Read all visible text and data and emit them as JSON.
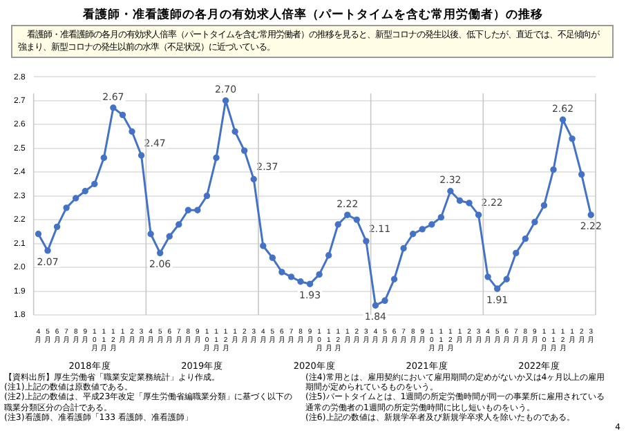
{
  "chart_data": {
    "type": "line",
    "title": "看護師・准看護師の各月の有効求人倍率（パートタイムを含む常用労働者）の推移",
    "subtitle": "看護師・准看護師の各月の有効求人倍率（パートタイムを含む常用労働者）の推移を見ると、新型コロナの発生以後、低下したが、直近では、不足傾向が強まり、新型コロナの発生以前の水準（不足状況）に近づいている。",
    "categories": [
      "4月",
      "5月",
      "6月",
      "7月",
      "8月",
      "9月",
      "10月",
      "11月",
      "12月",
      "1月",
      "2月",
      "3月",
      "4月",
      "5月",
      "6月",
      "7月",
      "8月",
      "9月",
      "10月",
      "11月",
      "12月",
      "1月",
      "2月",
      "3月",
      "4月",
      "5月",
      "6月",
      "7月",
      "8月",
      "9月",
      "10月",
      "11月",
      "12月",
      "1月",
      "2月",
      "3月",
      "4月",
      "5月",
      "6月",
      "7月",
      "8月",
      "9月",
      "10月",
      "11月",
      "12月",
      "1月",
      "2月",
      "3月",
      "4月",
      "5月",
      "6月",
      "7月",
      "8月",
      "9月",
      "10月",
      "11月",
      "12月",
      "1月",
      "2月",
      "3月"
    ],
    "series": [
      {
        "color": "#4472c4",
        "values": [
          2.14,
          2.07,
          2.17,
          2.25,
          2.29,
          2.32,
          2.35,
          2.46,
          2.67,
          2.64,
          2.57,
          2.47,
          2.14,
          2.06,
          2.13,
          2.18,
          2.24,
          2.24,
          2.3,
          2.46,
          2.7,
          2.57,
          2.49,
          2.37,
          2.09,
          2.04,
          1.98,
          1.96,
          1.94,
          1.93,
          1.97,
          2.05,
          2.18,
          2.22,
          2.2,
          2.11,
          1.84,
          1.86,
          1.95,
          2.08,
          2.14,
          2.16,
          2.18,
          2.21,
          2.32,
          2.28,
          2.27,
          2.22,
          1.96,
          1.91,
          1.95,
          2.06,
          2.12,
          2.19,
          2.26,
          2.41,
          2.62,
          2.54,
          2.39,
          2.22
        ],
        "value_labels": [
          null,
          "2.07",
          null,
          null,
          null,
          null,
          null,
          null,
          "2.67",
          null,
          null,
          "2.47",
          null,
          "2.06",
          null,
          null,
          null,
          null,
          null,
          null,
          "2.70",
          null,
          null,
          "2.37",
          null,
          null,
          null,
          null,
          null,
          "1.93",
          null,
          null,
          null,
          "2.22",
          null,
          "2.11",
          "1.84",
          null,
          null,
          null,
          null,
          null,
          null,
          null,
          "2.32",
          null,
          null,
          "2.22",
          null,
          "1.91",
          null,
          null,
          null,
          null,
          null,
          null,
          "2.62",
          null,
          null,
          "2.22"
        ]
      }
    ],
    "ylim": [
      1.8,
      2.8
    ],
    "yticks": [
      1.8,
      1.9,
      {
        "value": 2,
        "label": "2.0"
      },
      2.1,
      2.2,
      2.3,
      2.4,
      2.5,
      2.6,
      2.7,
      2.8
    ],
    "grid": "y",
    "legend": false,
    "marker": "circle",
    "line_style": "solid",
    "annotations": [
      "2018年度",
      "2019年度",
      "2020年度",
      "2021年度",
      "2022年度",
      "【資料出所】厚生労働省「職業安定業務統計」より作成。",
      "(注1)上記の数値は原数値である。",
      "(注2)上記の数値は、平成23年改定「厚生労働省編職業分類」に基づく以下の職業分類区分の合計である。",
      "(注3)看護師、准看護師「133 看護師、准看護師」",
      "(注4)常用とは、雇用契約において雇用期間の定めがないか又は4ヶ月以上の雇用期間が定められているものをいう。",
      "(注5)パートタイムとは、1週間の所定労働時間が同一の事業所に雇用されている通常の労働者の1週間の所定労働時間に比し短いものをいう。",
      "(注6)上記の数値は、新規学卒者及び新規学卒求人を除いたものである。",
      "4"
    ]
  }
}
